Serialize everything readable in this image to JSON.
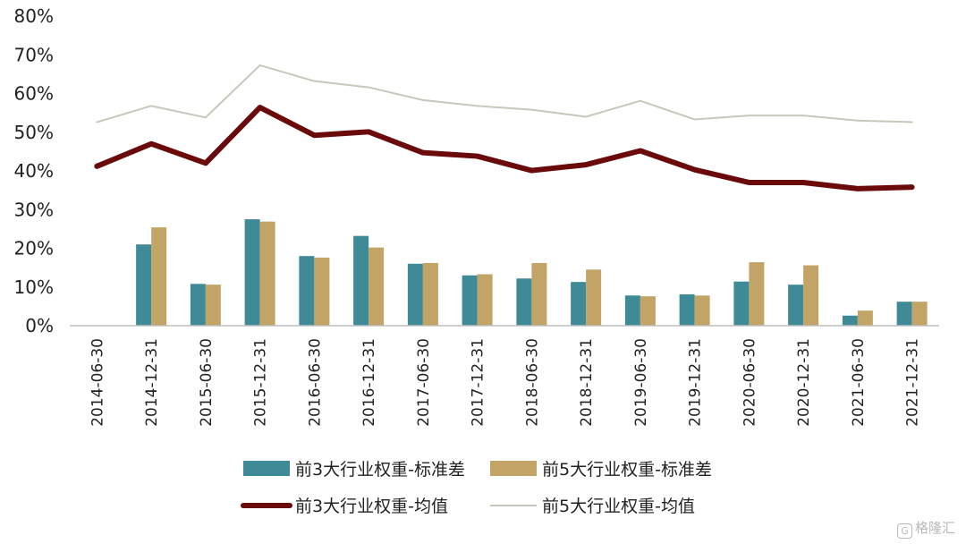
{
  "chart_data": {
    "type": "bar",
    "categories": [
      "2014-06-30",
      "2014-12-31",
      "2015-06-30",
      "2015-12-31",
      "2016-06-30",
      "2016-12-31",
      "2017-06-30",
      "2017-12-31",
      "2018-06-30",
      "2018-12-31",
      "2019-06-30",
      "2019-12-31",
      "2020-06-30",
      "2020-12-31",
      "2021-06-30",
      "2021-12-31"
    ],
    "ylim": [
      0,
      80
    ],
    "yticks": [
      "0%",
      "10%",
      "20%",
      "30%",
      "40%",
      "50%",
      "60%",
      "70%",
      "80%"
    ],
    "grid": false,
    "legend_position": "bottom",
    "series": [
      {
        "name": "前3大行业权重-标准差",
        "kind": "bar",
        "color": "#3f8a97",
        "values": [
          null,
          21.0,
          10.8,
          27.5,
          18.0,
          23.2,
          16.0,
          13.0,
          12.2,
          11.3,
          7.8,
          8.1,
          11.4,
          10.6,
          2.6,
          6.2
        ]
      },
      {
        "name": "前5大行业权重-标准差",
        "kind": "bar",
        "color": "#c3a467",
        "values": [
          null,
          25.4,
          10.6,
          26.9,
          17.6,
          20.2,
          16.2,
          13.3,
          16.2,
          14.5,
          7.6,
          7.8,
          16.4,
          15.6,
          3.9,
          6.2
        ]
      },
      {
        "name": "前3大行业权重-均值",
        "kind": "line",
        "color": "#6b0a0a",
        "values": [
          41.2,
          47.0,
          42.0,
          56.4,
          49.2,
          50.1,
          44.7,
          43.8,
          40.1,
          41.6,
          45.2,
          40.3,
          37.0,
          37.0,
          35.4,
          35.8
        ]
      },
      {
        "name": "前5大行业权重-均值",
        "kind": "line",
        "color": "#c6c8bc",
        "values": [
          52.6,
          56.8,
          53.8,
          67.3,
          63.2,
          61.6,
          58.3,
          56.8,
          55.8,
          54.0,
          58.1,
          53.3,
          54.3,
          54.3,
          53.0,
          52.6
        ]
      }
    ]
  },
  "watermark": {
    "icon": "G",
    "text": "格隆汇"
  }
}
